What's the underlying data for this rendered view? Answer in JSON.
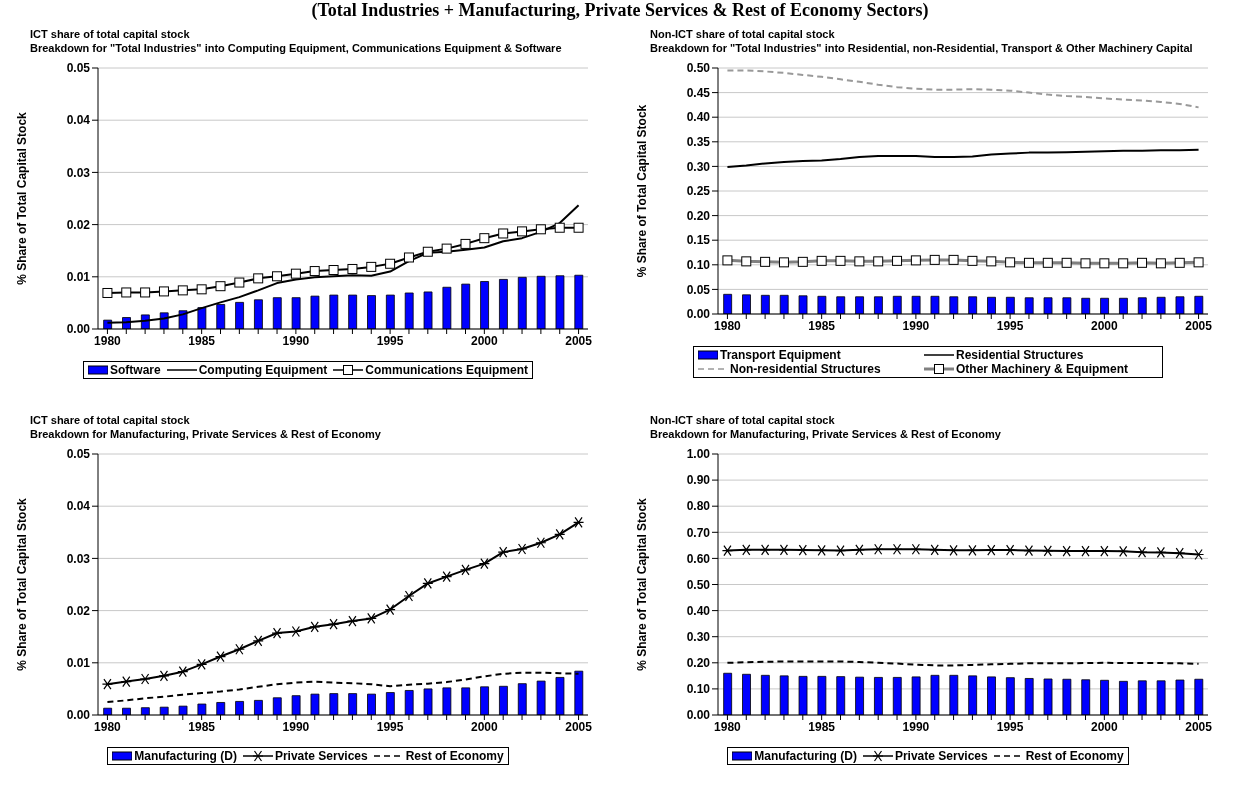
{
  "chart_data": [
    {
      "type": "bar",
      "title": "ICT share of total capital stock",
      "subtitle": "Breakdown for \"Total Industries\" into Computing Equipment, Communications Equipment & Software",
      "annotations": [
        "(Total Industries + Manufacturing, Private Services & Rest of Economy Sectors)"
      ],
      "ylabel": "% Share of Total Capital Stock",
      "categories": [
        "1980",
        null,
        null,
        null,
        null,
        "1985",
        null,
        null,
        null,
        null,
        "1990",
        null,
        null,
        null,
        null,
        "1995",
        null,
        null,
        null,
        null,
        "2000",
        null,
        null,
        null,
        null,
        "2005"
      ],
      "ylim": [
        0,
        0.05
      ],
      "yticks": [
        {
          "value": 0,
          "label": "0.00"
        },
        {
          "value": 0.01,
          "label": "0.01"
        },
        {
          "value": 0.02,
          "label": "0.02"
        },
        {
          "value": 0.03,
          "label": "0.03"
        },
        {
          "value": 0.04,
          "label": "0.04"
        },
        {
          "value": 0.05,
          "label": "0.05"
        }
      ],
      "grid": "y",
      "legend": "bottom",
      "series": [
        {
          "name": "Software",
          "color": "#0000ff",
          "values": [
            0.0017,
            0.0022,
            0.0027,
            0.0031,
            0.0035,
            0.0041,
            0.0047,
            0.0051,
            0.0056,
            0.006,
            0.006,
            0.0063,
            0.0065,
            0.0065,
            0.0064,
            0.0065,
            0.0069,
            0.0071,
            0.008,
            0.0086,
            0.0091,
            0.0095,
            0.0099,
            0.0101,
            0.0102,
            0.0103
          ]
        },
        {
          "name": "Computing Equipment",
          "type": "line",
          "color": "#000000",
          "marker": "none",
          "line_style": "solid",
          "values": [
            0.0012,
            0.0013,
            0.0016,
            0.002,
            0.0028,
            0.004,
            0.0051,
            0.0061,
            0.0074,
            0.0088,
            0.0095,
            0.0099,
            0.0101,
            0.0103,
            0.0102,
            0.011,
            0.013,
            0.0146,
            0.0148,
            0.0152,
            0.0156,
            0.0168,
            0.0174,
            0.0186,
            0.0203,
            0.0237
          ]
        },
        {
          "name": "Communications Equipment",
          "type": "line",
          "color": "#000000",
          "marker": "square",
          "line_style": "solid",
          "values": [
            0.0069,
            0.007,
            0.007,
            0.0072,
            0.0074,
            0.0076,
            0.0082,
            0.0089,
            0.0097,
            0.0101,
            0.0106,
            0.0111,
            0.0113,
            0.0115,
            0.0119,
            0.0125,
            0.0137,
            0.0148,
            0.0154,
            0.0163,
            0.0174,
            0.0183,
            0.0187,
            0.0191,
            0.0194,
            0.0194
          ]
        }
      ]
    },
    {
      "type": "bar",
      "title": "Non-ICT share of total capital stock",
      "subtitle": "Breakdown for \"Total Industries\" into Residential, non-Residential, Transport & Other Machinery Capital",
      "ylabel": "% Share of Total Capital Stock",
      "categories": [
        "1980",
        null,
        null,
        null,
        null,
        "1985",
        null,
        null,
        null,
        null,
        "1990",
        null,
        null,
        null,
        null,
        "1995",
        null,
        null,
        null,
        null,
        "2000",
        null,
        null,
        null,
        null,
        "2005"
      ],
      "ylim": [
        0,
        0.5
      ],
      "yticks": [
        {
          "value": 0,
          "label": "0.00"
        },
        0.05,
        {
          "value": 0.1,
          "label": "0.10"
        },
        0.15,
        {
          "value": 0.2,
          "label": "0.20"
        },
        0.25,
        {
          "value": 0.3,
          "label": "0.30"
        },
        0.35,
        {
          "value": 0.4,
          "label": "0.40"
        },
        0.45,
        {
          "value": 0.5,
          "label": "0.50"
        }
      ],
      "grid": "y",
      "legend": "bottom",
      "series": [
        {
          "name": "Transport Equipment",
          "color": "#0000ff",
          "values": [
            0.04,
            0.039,
            0.038,
            0.038,
            0.037,
            0.036,
            0.035,
            0.035,
            0.035,
            0.036,
            0.036,
            0.036,
            0.035,
            0.035,
            0.034,
            0.034,
            0.033,
            0.033,
            0.033,
            0.032,
            0.032,
            0.032,
            0.033,
            0.034,
            0.035,
            0.036
          ]
        },
        {
          "name": "Residential Structures",
          "type": "line",
          "color": "#000000",
          "marker": "none",
          "line_style": "solid",
          "values": [
            0.299,
            0.302,
            0.306,
            0.309,
            0.311,
            0.312,
            0.315,
            0.319,
            0.321,
            0.321,
            0.321,
            0.319,
            0.319,
            0.32,
            0.324,
            0.326,
            0.328,
            0.328,
            0.329,
            0.33,
            0.331,
            0.332,
            0.332,
            0.333,
            0.333,
            0.334
          ]
        },
        {
          "name": "Non-residential Structures",
          "type": "line",
          "color": "#999999",
          "marker": "none",
          "line_style": "dashed",
          "values": [
            0.495,
            0.495,
            0.493,
            0.49,
            0.486,
            0.482,
            0.477,
            0.472,
            0.466,
            0.461,
            0.458,
            0.456,
            0.456,
            0.457,
            0.456,
            0.454,
            0.45,
            0.446,
            0.443,
            0.441,
            0.438,
            0.436,
            0.434,
            0.431,
            0.427,
            0.42
          ]
        },
        {
          "name": "Other Machinery & Equipment",
          "type": "line",
          "color": "#808080",
          "marker": "square",
          "line_style": "solid",
          "values": [
            0.109,
            0.107,
            0.106,
            0.105,
            0.106,
            0.108,
            0.108,
            0.107,
            0.107,
            0.108,
            0.109,
            0.11,
            0.11,
            0.108,
            0.107,
            0.105,
            0.104,
            0.104,
            0.104,
            0.103,
            0.103,
            0.103,
            0.104,
            0.103,
            0.104,
            0.105
          ]
        }
      ]
    },
    {
      "type": "bar",
      "title": "ICT share of total capital stock",
      "subtitle": "Breakdown for Manufacturing, Private Services & Rest of Economy",
      "ylabel": "% Share of Total Capital Stock",
      "categories": [
        "1980",
        null,
        null,
        null,
        null,
        "1985",
        null,
        null,
        null,
        null,
        "1990",
        null,
        null,
        null,
        null,
        "1995",
        null,
        null,
        null,
        null,
        "2000",
        null,
        null,
        null,
        null,
        "2005"
      ],
      "ylim": [
        0,
        0.05
      ],
      "yticks": [
        {
          "value": 0,
          "label": "0.00"
        },
        {
          "value": 0.01,
          "label": "0.01"
        },
        {
          "value": 0.02,
          "label": "0.02"
        },
        {
          "value": 0.03,
          "label": "0.03"
        },
        {
          "value": 0.04,
          "label": "0.04"
        },
        {
          "value": 0.05,
          "label": "0.05"
        }
      ],
      "grid": "y",
      "legend": "bottom",
      "series": [
        {
          "name": "Manufacturing (D)",
          "color": "#0000ff",
          "values": [
            0.0013,
            0.0013,
            0.0014,
            0.0015,
            0.0017,
            0.0021,
            0.0024,
            0.0026,
            0.0028,
            0.0033,
            0.0037,
            0.004,
            0.0041,
            0.0041,
            0.004,
            0.0043,
            0.0047,
            0.005,
            0.0052,
            0.0052,
            0.0054,
            0.0055,
            0.006,
            0.0065,
            0.0072,
            0.0084
          ]
        },
        {
          "name": "Private Services",
          "type": "line",
          "color": "#000000",
          "marker": "cross",
          "line_style": "solid",
          "values": [
            0.0059,
            0.0064,
            0.0069,
            0.0075,
            0.0083,
            0.0097,
            0.0112,
            0.0126,
            0.0142,
            0.0157,
            0.016,
            0.0169,
            0.0174,
            0.018,
            0.0185,
            0.0202,
            0.0228,
            0.0252,
            0.0265,
            0.0278,
            0.029,
            0.0312,
            0.0318,
            0.033,
            0.0346,
            0.0369
          ]
        },
        {
          "name": "Rest of Economy",
          "type": "line",
          "color": "#000000",
          "marker": "none",
          "line_style": "dashed",
          "values": [
            0.0025,
            0.0028,
            0.0032,
            0.0035,
            0.0039,
            0.0042,
            0.0045,
            0.0049,
            0.0054,
            0.0059,
            0.0062,
            0.0064,
            0.0062,
            0.0061,
            0.0059,
            0.0055,
            0.0058,
            0.006,
            0.0063,
            0.0068,
            0.0074,
            0.0079,
            0.0081,
            0.0081,
            0.008,
            0.0079
          ]
        }
      ]
    },
    {
      "type": "bar",
      "title": "Non-ICT share of total capital stock",
      "subtitle": "Breakdown for Manufacturing, Private Services & Rest of Economy",
      "ylabel": "% Share of Total Capital Stock",
      "categories": [
        "1980",
        null,
        null,
        null,
        null,
        "1985",
        null,
        null,
        null,
        null,
        "1990",
        null,
        null,
        null,
        null,
        "1995",
        null,
        null,
        null,
        null,
        "2000",
        null,
        null,
        null,
        null,
        "2005"
      ],
      "ylim": [
        0,
        1
      ],
      "yticks": [
        {
          "value": 0,
          "label": "0.00"
        },
        {
          "value": 0.1,
          "label": "0.10"
        },
        {
          "value": 0.2,
          "label": "0.20"
        },
        {
          "value": 0.3,
          "label": "0.30"
        },
        {
          "value": 0.4,
          "label": "0.40"
        },
        {
          "value": 0.5,
          "label": "0.50"
        },
        {
          "value": 0.6,
          "label": "0.60"
        },
        {
          "value": 0.7,
          "label": "0.70"
        },
        {
          "value": 0.8,
          "label": "0.80"
        },
        {
          "value": 0.9,
          "label": "0.90"
        },
        {
          "value": 1,
          "label": "1.00"
        }
      ],
      "grid": "y",
      "legend": "bottom",
      "series": [
        {
          "name": "Manufacturing (D)",
          "color": "#0000ff",
          "values": [
            0.16,
            0.156,
            0.152,
            0.15,
            0.148,
            0.148,
            0.147,
            0.145,
            0.144,
            0.144,
            0.146,
            0.152,
            0.152,
            0.15,
            0.146,
            0.143,
            0.14,
            0.138,
            0.137,
            0.135,
            0.133,
            0.129,
            0.131,
            0.131,
            0.134,
            0.137
          ]
        },
        {
          "name": "Private Services",
          "type": "line",
          "color": "#000000",
          "marker": "cross",
          "line_style": "solid",
          "values": [
            0.63,
            0.633,
            0.633,
            0.633,
            0.632,
            0.631,
            0.63,
            0.633,
            0.635,
            0.635,
            0.635,
            0.633,
            0.631,
            0.631,
            0.632,
            0.632,
            0.63,
            0.629,
            0.628,
            0.628,
            0.628,
            0.627,
            0.624,
            0.623,
            0.62,
            0.615
          ]
        },
        {
          "name": "Rest of Economy",
          "type": "line",
          "color": "#000000",
          "marker": "none",
          "line_style": "dashed",
          "values": [
            0.2,
            0.202,
            0.204,
            0.205,
            0.205,
            0.205,
            0.205,
            0.203,
            0.2,
            0.197,
            0.193,
            0.19,
            0.19,
            0.192,
            0.194,
            0.196,
            0.198,
            0.198,
            0.198,
            0.199,
            0.2,
            0.199,
            0.199,
            0.199,
            0.198,
            0.196
          ]
        }
      ]
    }
  ]
}
